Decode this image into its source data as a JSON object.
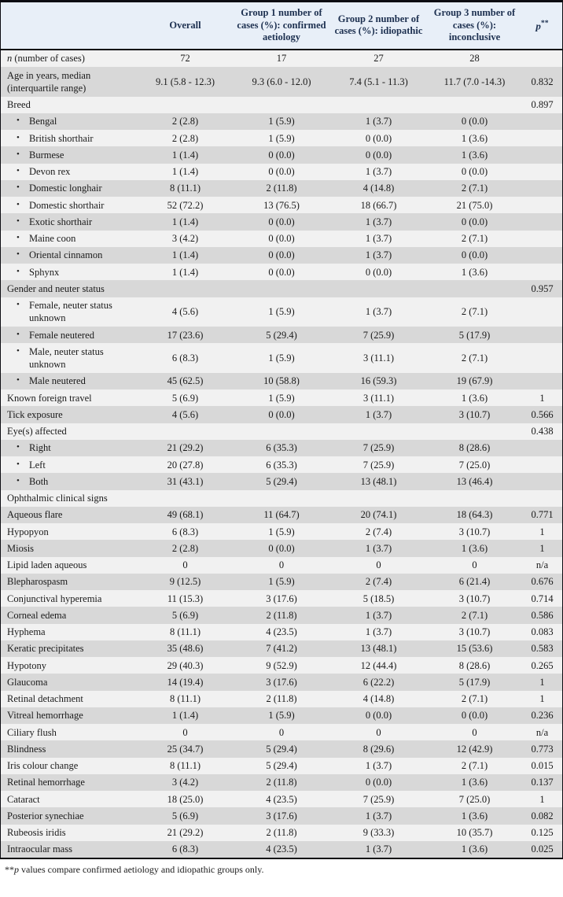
{
  "header": {
    "col_label": "",
    "col_overall": "Overall",
    "col_group1": "Group 1 number of cases (%): confirmed aetiology",
    "col_group2": "Group 2 number of cases (%): idiopathic",
    "col_group3": "Group 3 number of cases (%): inconclusive",
    "p_italic": "p",
    "p_stars": "**"
  },
  "bullet_char": "•",
  "rows": [
    {
      "italic_prefix": "n",
      "label": " (number of cases)",
      "bullet": false,
      "values": [
        "72",
        "17",
        "27",
        "28",
        ""
      ]
    },
    {
      "label": "Age in years, median (interquartile range)",
      "bullet": false,
      "values": [
        "9.1 (5.8 - 12.3)",
        "9.3 (6.0 - 12.0)",
        "7.4 (5.1 - 11.3)",
        "11.7 (7.0 -14.3)",
        "0.832"
      ]
    },
    {
      "label": "Breed",
      "bullet": false,
      "values": [
        "",
        "",
        "",
        "",
        "0.897"
      ]
    },
    {
      "label": "Bengal",
      "bullet": true,
      "values": [
        "2 (2.8)",
        "1 (5.9)",
        "1 (3.7)",
        "0 (0.0)",
        ""
      ]
    },
    {
      "label": "British shorthair",
      "bullet": true,
      "values": [
        "2 (2.8)",
        "1 (5.9)",
        "0 (0.0)",
        "1 (3.6)",
        ""
      ]
    },
    {
      "label": "Burmese",
      "bullet": true,
      "values": [
        "1 (1.4)",
        "0 (0.0)",
        "0 (0.0)",
        "1 (3.6)",
        ""
      ]
    },
    {
      "label": "Devon rex",
      "bullet": true,
      "values": [
        "1 (1.4)",
        "0 (0.0)",
        "1 (3.7)",
        "0 (0.0)",
        ""
      ]
    },
    {
      "label": "Domestic longhair",
      "bullet": true,
      "values": [
        "8 (11.1)",
        "2 (11.8)",
        "4 (14.8)",
        "2 (7.1)",
        ""
      ]
    },
    {
      "label": "Domestic shorthair",
      "bullet": true,
      "values": [
        "52 (72.2)",
        "13 (76.5)",
        "18 (66.7)",
        "21 (75.0)",
        ""
      ]
    },
    {
      "label": "Exotic shorthair",
      "bullet": true,
      "values": [
        "1 (1.4)",
        "0 (0.0)",
        "1 (3.7)",
        "0 (0.0)",
        ""
      ]
    },
    {
      "label": "Maine coon",
      "bullet": true,
      "values": [
        "3 (4.2)",
        "0 (0.0)",
        "1 (3.7)",
        "2 (7.1)",
        ""
      ]
    },
    {
      "label": "Oriental cinnamon",
      "bullet": true,
      "values": [
        "1 (1.4)",
        "0 (0.0)",
        "1 (3.7)",
        "0 (0.0)",
        ""
      ]
    },
    {
      "label": "Sphynx",
      "bullet": true,
      "values": [
        "1 (1.4)",
        "0 (0.0)",
        "0 (0.0)",
        "1 (3.6)",
        ""
      ]
    },
    {
      "label": "Gender and neuter status",
      "bullet": false,
      "values": [
        "",
        "",
        "",
        "",
        "0.957"
      ]
    },
    {
      "label": "Female, neuter status unknown",
      "bullet": true,
      "values": [
        "4 (5.6)",
        "1 (5.9)",
        "1 (3.7)",
        "2 (7.1)",
        ""
      ]
    },
    {
      "label": "Female neutered",
      "bullet": true,
      "values": [
        "17 (23.6)",
        "5 (29.4)",
        "7 (25.9)",
        "5 (17.9)",
        ""
      ]
    },
    {
      "label": "Male, neuter status unknown",
      "bullet": true,
      "values": [
        "6 (8.3)",
        "1 (5.9)",
        "3 (11.1)",
        "2 (7.1)",
        ""
      ]
    },
    {
      "label": "Male neutered",
      "bullet": true,
      "values": [
        "45 (62.5)",
        "10 (58.8)",
        "16 (59.3)",
        "19 (67.9)",
        ""
      ]
    },
    {
      "label": "Known foreign travel",
      "bullet": false,
      "values": [
        "5 (6.9)",
        "1 (5.9)",
        "3 (11.1)",
        "1 (3.6)",
        "1"
      ]
    },
    {
      "label": "Tick exposure",
      "bullet": false,
      "values": [
        "4 (5.6)",
        "0 (0.0)",
        "1 (3.7)",
        "3 (10.7)",
        "0.566"
      ]
    },
    {
      "label": "Eye(s) affected",
      "bullet": false,
      "values": [
        "",
        "",
        "",
        "",
        "0.438"
      ]
    },
    {
      "label": "Right",
      "bullet": true,
      "values": [
        "21 (29.2)",
        "6 (35.3)",
        "7 (25.9)",
        "8 (28.6)",
        ""
      ]
    },
    {
      "label": "Left",
      "bullet": true,
      "values": [
        "20 (27.8)",
        "6 (35.3)",
        "7 (25.9)",
        "7 (25.0)",
        ""
      ]
    },
    {
      "label": "Both",
      "bullet": true,
      "values": [
        "31 (43.1)",
        "5 (29.4)",
        "13 (48.1)",
        "13 (46.4)",
        ""
      ]
    },
    {
      "label": "Ophthalmic clinical signs",
      "bullet": false,
      "values": [
        "",
        "",
        "",
        "",
        ""
      ]
    },
    {
      "label": "Aqueous flare",
      "bullet": false,
      "values": [
        "49 (68.1)",
        "11 (64.7)",
        "20 (74.1)",
        "18 (64.3)",
        "0.771"
      ]
    },
    {
      "label": "Hypopyon",
      "bullet": false,
      "values": [
        "6 (8.3)",
        "1 (5.9)",
        "2 (7.4)",
        "3 (10.7)",
        "1"
      ]
    },
    {
      "label": "Miosis",
      "bullet": false,
      "values": [
        "2 (2.8)",
        "0 (0.0)",
        "1 (3.7)",
        "1 (3.6)",
        "1"
      ]
    },
    {
      "label": "Lipid laden aqueous",
      "bullet": false,
      "values": [
        "0",
        "0",
        "0",
        "0",
        "n/a"
      ]
    },
    {
      "label": "Blepharospasm",
      "bullet": false,
      "values": [
        "9 (12.5)",
        "1 (5.9)",
        "2 (7.4)",
        "6 (21.4)",
        "0.676"
      ]
    },
    {
      "label": "Conjunctival hyperemia",
      "bullet": false,
      "values": [
        "11 (15.3)",
        "3 (17.6)",
        "5 (18.5)",
        "3 (10.7)",
        "0.714"
      ]
    },
    {
      "label": "Corneal edema",
      "bullet": false,
      "values": [
        "5 (6.9)",
        "2 (11.8)",
        "1 (3.7)",
        "2 (7.1)",
        "0.586"
      ]
    },
    {
      "label": "Hyphema",
      "bullet": false,
      "values": [
        "8 (11.1)",
        "4 (23.5)",
        "1 (3.7)",
        "3 (10.7)",
        "0.083"
      ]
    },
    {
      "label": "Keratic precipitates",
      "bullet": false,
      "values": [
        "35 (48.6)",
        "7 (41.2)",
        "13 (48.1)",
        "15 (53.6)",
        "0.583"
      ]
    },
    {
      "label": "Hypotony",
      "bullet": false,
      "values": [
        "29 (40.3)",
        "9 (52.9)",
        "12 (44.4)",
        "8 (28.6)",
        "0.265"
      ]
    },
    {
      "label": "Glaucoma",
      "bullet": false,
      "values": [
        "14 (19.4)",
        "3 (17.6)",
        "6 (22.2)",
        "5 (17.9)",
        "1"
      ]
    },
    {
      "label": "Retinal detachment",
      "bullet": false,
      "values": [
        "8 (11.1)",
        "2 (11.8)",
        "4 (14.8)",
        "2 (7.1)",
        "1"
      ]
    },
    {
      "label": "Vitreal hemorrhage",
      "bullet": false,
      "values": [
        "1 (1.4)",
        "1 (5.9)",
        "0 (0.0)",
        "0 (0.0)",
        "0.236"
      ]
    },
    {
      "label": "Ciliary flush",
      "bullet": false,
      "values": [
        "0",
        "0",
        "0",
        "0",
        "n/a"
      ]
    },
    {
      "label": "Blindness",
      "bullet": false,
      "values": [
        "25 (34.7)",
        "5 (29.4)",
        "8 (29.6)",
        "12 (42.9)",
        "0.773"
      ]
    },
    {
      "label": "Iris colour change",
      "bullet": false,
      "values": [
        "8 (11.1)",
        "5 (29.4)",
        "1 (3.7)",
        "2 (7.1)",
        "0.015"
      ]
    },
    {
      "label": "Retinal hemorrhage",
      "bullet": false,
      "values": [
        "3 (4.2)",
        "2 (11.8)",
        "0 (0.0)",
        "1 (3.6)",
        "0.137"
      ]
    },
    {
      "label": "Cataract",
      "bullet": false,
      "values": [
        "18 (25.0)",
        "4 (23.5)",
        "7 (25.9)",
        "7 (25.0)",
        "1"
      ]
    },
    {
      "label": "Posterior synechiae",
      "bullet": false,
      "values": [
        "5 (6.9)",
        "3 (17.6)",
        "1 (3.7)",
        "1 (3.6)",
        "0.082"
      ]
    },
    {
      "label": "Rubeosis iridis",
      "bullet": false,
      "values": [
        "21 (29.2)",
        "2 (11.8)",
        "9 (33.3)",
        "10 (35.7)",
        "0.125"
      ]
    },
    {
      "label": "Intraocular mass",
      "bullet": false,
      "values": [
        "6 (8.3)",
        "4 (23.5)",
        "1 (3.7)",
        "1 (3.6)",
        "0.025"
      ]
    }
  ],
  "footnote": {
    "stars": "**",
    "italic": "p",
    "text": " values compare confirmed aetiology and idiopathic groups only."
  },
  "colors": {
    "header_bg": "#e8eff8",
    "row_light": "#f1f1f1",
    "row_dark": "#d8d8d8",
    "header_text": "#1d3050",
    "border": "#0c0c12"
  }
}
